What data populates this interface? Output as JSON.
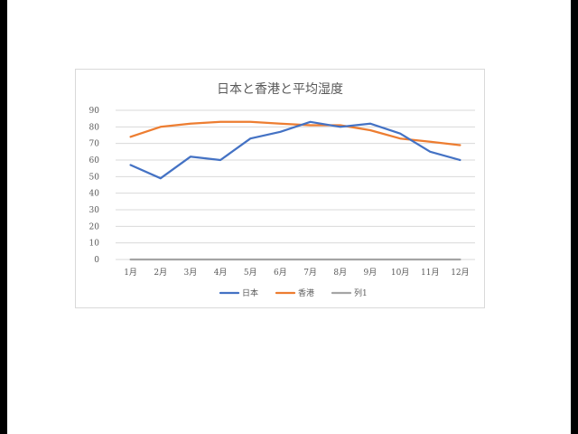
{
  "chart_data": {
    "type": "line",
    "title": "日本と香港と平均湿度",
    "categories": [
      "1月",
      "2月",
      "3月",
      "4月",
      "5月",
      "6月",
      "7月",
      "8月",
      "9月",
      "10月",
      "11月",
      "12月"
    ],
    "series": [
      {
        "name": "日本",
        "color": "#4472C4",
        "values": [
          57,
          49,
          62,
          60,
          73,
          77,
          83,
          80,
          82,
          76,
          65,
          60
        ]
      },
      {
        "name": "香港",
        "color": "#ED7D31",
        "values": [
          74,
          80,
          82,
          83,
          83,
          82,
          81,
          81,
          78,
          73,
          71,
          69
        ]
      },
      {
        "name": "列1",
        "color": "#A5A5A5",
        "values": [
          0,
          0,
          0,
          0,
          0,
          0,
          0,
          0,
          0,
          0,
          0,
          0
        ]
      }
    ],
    "yticks": [
      "0",
      "10",
      "20",
      "30",
      "40",
      "50",
      "60",
      "70",
      "80",
      "90"
    ],
    "ylim": [
      0,
      90
    ],
    "grid": true,
    "legend_position": "bottom",
    "xlabel": "",
    "ylabel": ""
  }
}
